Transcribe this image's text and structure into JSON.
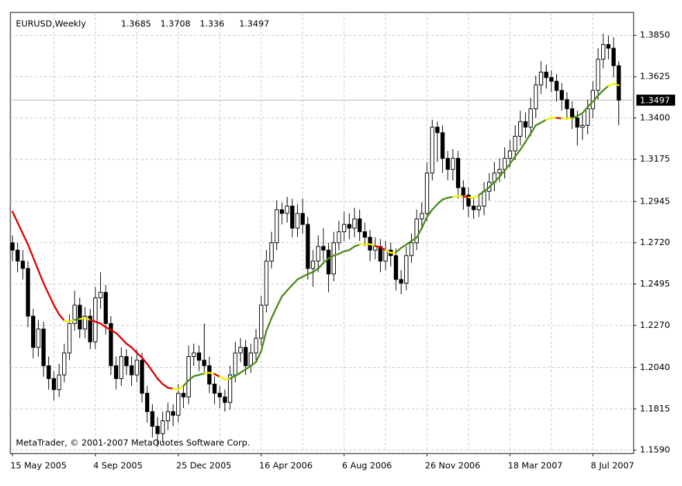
{
  "chart_data": {
    "type": "candlestick",
    "title": "EURUSD,Weekly",
    "annotation": "MetaTrader, © 2001-2007 MetaQuotes Software Corp.",
    "categories": [
      "15 May 2005",
      null,
      null,
      null,
      null,
      null,
      null,
      null,
      null,
      null,
      null,
      null,
      null,
      null,
      null,
      null,
      "4 Sep 2005",
      null,
      null,
      null,
      null,
      null,
      null,
      null,
      null,
      null,
      null,
      null,
      null,
      null,
      null,
      null,
      "25 Dec 2005",
      null,
      null,
      null,
      null,
      null,
      null,
      null,
      null,
      null,
      null,
      null,
      null,
      null,
      null,
      null,
      "16 Apr 2006",
      null,
      null,
      null,
      null,
      null,
      null,
      null,
      null,
      null,
      null,
      null,
      null,
      null,
      null,
      null,
      "6 Aug 2006",
      null,
      null,
      null,
      null,
      null,
      null,
      null,
      null,
      null,
      null,
      null,
      null,
      null,
      null,
      null,
      "26 Nov 2006",
      null,
      null,
      null,
      null,
      null,
      null,
      null,
      null,
      null,
      null,
      null,
      null,
      null,
      null,
      null,
      "18 Mar 2007",
      null,
      null,
      null,
      null,
      null,
      null,
      null,
      null,
      null,
      null,
      null,
      null,
      null,
      null,
      null,
      "8 Jul 2007",
      null,
      null,
      null,
      null,
      null
    ],
    "open": [
      1.272,
      1.268,
      1.262,
      1.258,
      1.232,
      1.215,
      1.225,
      1.205,
      1.198,
      1.192,
      1.2,
      1.212,
      1.228,
      1.238,
      1.225,
      1.232,
      1.218,
      1.242,
      1.245,
      1.228,
      1.205,
      1.198,
      1.21,
      1.205,
      1.2,
      1.208,
      1.19,
      1.18,
      1.172,
      1.168,
      1.175,
      1.18,
      1.178,
      1.19,
      1.188,
      1.21,
      1.212,
      1.208,
      1.205,
      1.195,
      1.19,
      1.188,
      1.185,
      1.2,
      1.212,
      1.215,
      1.205,
      1.212,
      1.22,
      1.238,
      1.262,
      1.272,
      1.29,
      1.288,
      1.292,
      1.28,
      1.288,
      1.282,
      1.258,
      1.262,
      1.27,
      1.268,
      1.255,
      1.272,
      1.278,
      1.282,
      1.28,
      1.285,
      1.278,
      1.275,
      1.268,
      1.27,
      1.262,
      1.268,
      1.265,
      1.252,
      1.25,
      1.265,
      1.272,
      1.285,
      1.288,
      1.31,
      1.335,
      1.332,
      1.318,
      1.312,
      1.318,
      1.302,
      1.298,
      1.292,
      1.29,
      1.292,
      1.3,
      1.305,
      1.31,
      1.312,
      1.318,
      1.322,
      1.33,
      1.338,
      1.335,
      1.345,
      1.358,
      1.365,
      1.362,
      1.36,
      1.355,
      1.35,
      1.345,
      1.34,
      1.335,
      1.336,
      1.345,
      1.355,
      1.372,
      1.38,
      1.378,
      1.3685
    ],
    "high": [
      1.276,
      1.272,
      1.268,
      1.262,
      1.236,
      1.23,
      1.229,
      1.21,
      1.202,
      1.206,
      1.217,
      1.233,
      1.246,
      1.242,
      1.237,
      1.236,
      1.248,
      1.256,
      1.249,
      1.232,
      1.21,
      1.215,
      1.214,
      1.21,
      1.214,
      1.212,
      1.194,
      1.184,
      1.177,
      1.18,
      1.185,
      1.184,
      1.195,
      1.194,
      1.216,
      1.217,
      1.216,
      1.228,
      1.21,
      1.199,
      1.194,
      1.192,
      1.205,
      1.218,
      1.22,
      1.219,
      1.217,
      1.225,
      1.243,
      1.268,
      1.278,
      1.295,
      1.294,
      1.297,
      1.296,
      1.293,
      1.296,
      1.286,
      1.268,
      1.276,
      1.28,
      1.272,
      1.278,
      1.284,
      1.289,
      1.288,
      1.291,
      1.29,
      1.283,
      1.279,
      1.275,
      1.274,
      1.273,
      1.272,
      1.269,
      1.257,
      1.27,
      1.277,
      1.29,
      1.294,
      1.316,
      1.339,
      1.338,
      1.336,
      1.322,
      1.323,
      1.322,
      1.306,
      1.302,
      1.297,
      1.298,
      1.305,
      1.31,
      1.316,
      1.318,
      1.324,
      1.328,
      1.336,
      1.344,
      1.343,
      1.351,
      1.363,
      1.371,
      1.369,
      1.366,
      1.364,
      1.359,
      1.354,
      1.349,
      1.344,
      1.342,
      1.35,
      1.36,
      1.378,
      1.386,
      1.385,
      1.384,
      1.3708
    ],
    "low": [
      1.262,
      1.256,
      1.252,
      1.226,
      1.209,
      1.21,
      1.199,
      1.192,
      1.186,
      1.188,
      1.196,
      1.208,
      1.224,
      1.22,
      1.22,
      1.214,
      1.214,
      1.236,
      1.222,
      1.2,
      1.192,
      1.194,
      1.2,
      1.194,
      1.196,
      1.185,
      1.174,
      1.166,
      1.162,
      1.163,
      1.17,
      1.172,
      1.174,
      1.182,
      1.184,
      1.205,
      1.202,
      1.2,
      1.19,
      1.184,
      1.182,
      1.18,
      1.181,
      1.196,
      1.207,
      1.2,
      1.201,
      1.208,
      1.216,
      1.234,
      1.258,
      1.268,
      1.282,
      1.283,
      1.275,
      1.275,
      1.277,
      1.252,
      1.248,
      1.256,
      1.262,
      1.245,
      1.251,
      1.268,
      1.273,
      1.274,
      1.275,
      1.273,
      1.27,
      1.262,
      1.263,
      1.256,
      1.257,
      1.259,
      1.246,
      1.244,
      1.246,
      1.261,
      1.268,
      1.28,
      1.284,
      1.306,
      1.316,
      1.31,
      1.306,
      1.306,
      1.296,
      1.29,
      1.286,
      1.285,
      1.286,
      1.287,
      1.295,
      1.3,
      1.305,
      1.307,
      1.313,
      1.317,
      1.325,
      1.329,
      1.33,
      1.34,
      1.353,
      1.356,
      1.354,
      1.349,
      1.344,
      1.339,
      1.334,
      1.325,
      1.328,
      1.331,
      1.34,
      1.35,
      1.367,
      1.372,
      1.362,
      1.336
    ],
    "close": [
      1.268,
      1.262,
      1.258,
      1.232,
      1.215,
      1.225,
      1.205,
      1.198,
      1.192,
      1.2,
      1.212,
      1.228,
      1.238,
      1.225,
      1.232,
      1.218,
      1.242,
      1.245,
      1.228,
      1.205,
      1.198,
      1.21,
      1.205,
      1.2,
      1.208,
      1.19,
      1.18,
      1.172,
      1.168,
      1.175,
      1.18,
      1.178,
      1.19,
      1.188,
      1.21,
      1.212,
      1.208,
      1.205,
      1.195,
      1.19,
      1.188,
      1.185,
      1.2,
      1.212,
      1.215,
      1.205,
      1.212,
      1.22,
      1.238,
      1.262,
      1.272,
      1.29,
      1.288,
      1.292,
      1.28,
      1.288,
      1.282,
      1.258,
      1.262,
      1.27,
      1.268,
      1.255,
      1.272,
      1.278,
      1.282,
      1.28,
      1.285,
      1.278,
      1.275,
      1.268,
      1.27,
      1.262,
      1.268,
      1.265,
      1.252,
      1.25,
      1.265,
      1.272,
      1.285,
      1.288,
      1.31,
      1.335,
      1.332,
      1.318,
      1.312,
      1.318,
      1.302,
      1.298,
      1.292,
      1.29,
      1.292,
      1.3,
      1.305,
      1.31,
      1.312,
      1.318,
      1.322,
      1.33,
      1.338,
      1.335,
      1.345,
      1.358,
      1.365,
      1.362,
      1.36,
      1.355,
      1.35,
      1.345,
      1.34,
      1.335,
      1.336,
      1.345,
      1.355,
      1.372,
      1.38,
      1.378,
      1.3685,
      1.3497
    ],
    "ma": {
      "values": [
        1.289,
        1.283,
        1.277,
        1.271,
        1.264,
        1.257,
        1.25,
        1.244,
        1.238,
        1.233,
        1.2295,
        1.229,
        1.23,
        1.2305,
        1.231,
        1.23,
        1.229,
        1.228,
        1.226,
        1.2245,
        1.2228,
        1.22,
        1.217,
        1.215,
        1.212,
        1.2095,
        1.206,
        1.202,
        1.198,
        1.195,
        1.193,
        1.1925,
        1.192,
        1.194,
        1.197,
        1.1993,
        1.2,
        1.2008,
        1.2012,
        1.2005,
        1.199,
        1.1975,
        1.198,
        1.1995,
        1.2012,
        1.203,
        1.205,
        1.207,
        1.213,
        1.224,
        1.231,
        1.237,
        1.2427,
        1.246,
        1.249,
        1.252,
        1.2535,
        1.255,
        1.256,
        1.258,
        1.261,
        1.2635,
        1.265,
        1.266,
        1.2673,
        1.268,
        1.27,
        1.271,
        1.2712,
        1.2712,
        1.2703,
        1.2695,
        1.268,
        1.2665,
        1.2668,
        1.2692,
        1.271,
        1.273,
        1.2748,
        1.28,
        1.2861,
        1.29,
        1.293,
        1.2956,
        1.2965,
        1.297,
        1.2975,
        1.2972,
        1.2968,
        1.2963,
        1.298,
        1.3,
        1.3023,
        1.305,
        1.308,
        1.3114,
        1.315,
        1.319,
        1.3227,
        1.327,
        1.3315,
        1.336,
        1.3375,
        1.339,
        1.3401,
        1.34,
        1.3398,
        1.3397,
        1.34,
        1.341,
        1.3427,
        1.346,
        1.349,
        1.3522,
        1.355,
        1.3575,
        1.3586,
        1.3578
      ],
      "colors": {
        "up": "#4c8c1c",
        "down": "#e00000",
        "turn": "#f0f000"
      }
    },
    "ylim": [
      1.1579,
      1.3975
    ],
    "yticks": [
      {
        "value": 1.159,
        "label": "1.1590"
      },
      1.1815,
      {
        "value": 1.204,
        "label": "1.2040"
      },
      {
        "value": 1.227,
        "label": "1.2270"
      },
      1.2495,
      {
        "value": 1.272,
        "label": "1.2720"
      },
      1.2945,
      1.3175,
      {
        "value": 1.34,
        "label": "1.3400"
      },
      1.3625,
      {
        "value": 1.385,
        "label": "1.3850"
      }
    ],
    "grid": true,
    "bull_color": "#ffffff",
    "bear_color": "#000000"
  }
}
